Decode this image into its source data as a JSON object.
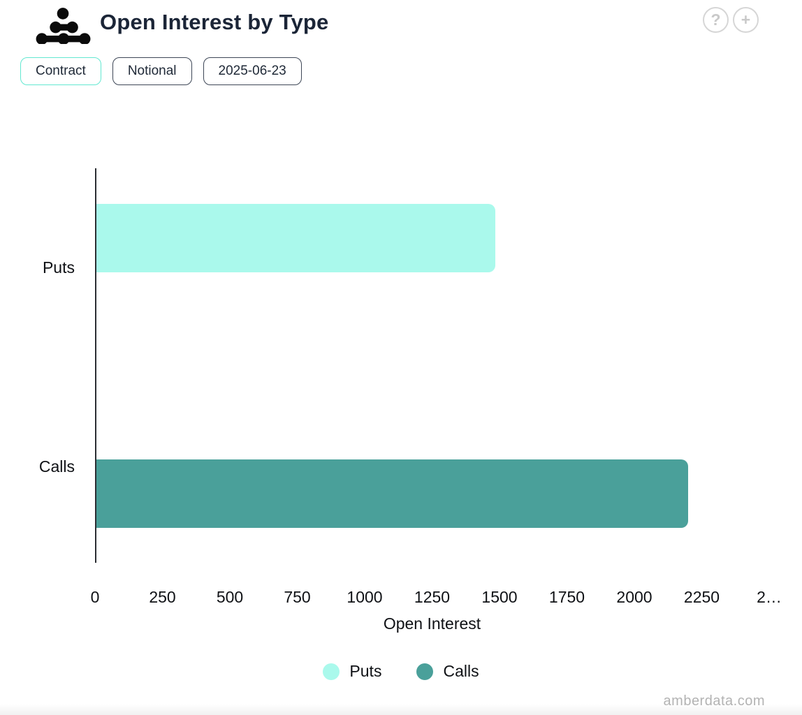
{
  "header": {
    "title": "Open Interest by Type",
    "help_glyph": "?",
    "add_glyph": "+"
  },
  "toolbar": {
    "buttons": [
      {
        "label": "Contract",
        "active": true
      },
      {
        "label": "Notional",
        "active": false
      },
      {
        "label": "2025-06-23",
        "active": false
      }
    ]
  },
  "chart_data": {
    "type": "bar",
    "orientation": "horizontal",
    "title": "Open Interest by Type",
    "categories": [
      "Puts",
      "Calls"
    ],
    "series": [
      {
        "name": "Puts",
        "value": 1480,
        "color": "#AAF9EC"
      },
      {
        "name": "Calls",
        "value": 2195,
        "color": "#4AA09A"
      }
    ],
    "xlabel": "Open Interest",
    "xlim": [
      0,
      2500
    ],
    "x_ticks": [
      {
        "value": 0,
        "label": "0"
      },
      {
        "value": 250,
        "label": "250"
      },
      {
        "value": 500,
        "label": "500"
      },
      {
        "value": 750,
        "label": "750"
      },
      {
        "value": 1000,
        "label": "1000"
      },
      {
        "value": 1250,
        "label": "1250"
      },
      {
        "value": 1500,
        "label": "1500"
      },
      {
        "value": 1750,
        "label": "1750"
      },
      {
        "value": 2000,
        "label": "2000"
      },
      {
        "value": 2250,
        "label": "2250"
      },
      {
        "value": 2500,
        "label": "2…"
      }
    ],
    "grid": false,
    "legend_position": "bottom"
  },
  "watermark": "amberdata.com",
  "colors": {
    "title_text": "#1b2537",
    "active_button_border": "#63e8d1",
    "button_border": "#3d4656",
    "axis_line": "#2b2e33",
    "icon_gray": "#d6d6d6",
    "watermark_text": "#b3b3b3"
  }
}
